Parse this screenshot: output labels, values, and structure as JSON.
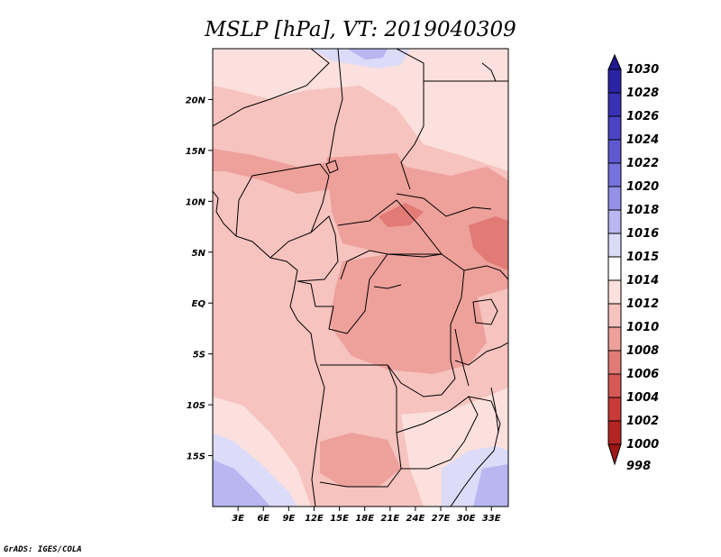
{
  "chart_data": {
    "type": "heatmap",
    "title": "MSLP [hPa], VT: 2019040309",
    "variable": "MSLP",
    "units": "hPa",
    "valid_time": "2019040309",
    "xlim": [
      0,
      35
    ],
    "ylim": [
      -20,
      25
    ],
    "x_ticks": [
      {
        "value": 3,
        "label": "3E"
      },
      {
        "value": 6,
        "label": "6E"
      },
      {
        "value": 9,
        "label": "9E"
      },
      {
        "value": 12,
        "label": "12E"
      },
      {
        "value": 15,
        "label": "15E"
      },
      {
        "value": 18,
        "label": "18E"
      },
      {
        "value": 21,
        "label": "21E"
      },
      {
        "value": 24,
        "label": "24E"
      },
      {
        "value": 27,
        "label": "27E"
      },
      {
        "value": 30,
        "label": "30E"
      },
      {
        "value": 33,
        "label": "33E"
      }
    ],
    "y_ticks": [
      {
        "value": 20,
        "label": "20N"
      },
      {
        "value": 15,
        "label": "15N"
      },
      {
        "value": 10,
        "label": "10N"
      },
      {
        "value": 5,
        "label": "5N"
      },
      {
        "value": 0,
        "label": "EQ"
      },
      {
        "value": -5,
        "label": "5S"
      },
      {
        "value": -10,
        "label": "10S"
      },
      {
        "value": -15,
        "label": "15S"
      }
    ],
    "colorbar": [
      {
        "label": "1030",
        "color": "#1f1891"
      },
      {
        "label": "1028",
        "color": "#2a23a4"
      },
      {
        "label": "1026",
        "color": "#3830b5"
      },
      {
        "label": "1024",
        "color": "#4a44c4"
      },
      {
        "label": "1022",
        "color": "#5e59d2"
      },
      {
        "label": "1020",
        "color": "#7672df"
      },
      {
        "label": "1018",
        "color": "#9591ea"
      },
      {
        "label": "1016",
        "color": "#b9b6f2"
      },
      {
        "label": "1015",
        "color": "#dcdbf8"
      },
      {
        "label": "1014",
        "color": "#ffffff"
      },
      {
        "label": "1012",
        "color": "#fbe0dd"
      },
      {
        "label": "1010",
        "color": "#f6c3bf"
      },
      {
        "label": "1008",
        "color": "#eea09b"
      },
      {
        "label": "1006",
        "color": "#e27b76"
      },
      {
        "label": "1004",
        "color": "#d65955"
      },
      {
        "label": "1002",
        "color": "#c83a37"
      },
      {
        "label": "1000",
        "color": "#b42522"
      },
      {
        "label": "998",
        "color": "#9c1715"
      }
    ],
    "fields": [
      {
        "level": "1015-1016",
        "color": "#dcdbf8",
        "region": "north-central Sahara edge"
      },
      {
        "level": "1012-1014",
        "color": "#fbe0dd",
        "region": "Sahara / northeast"
      },
      {
        "level": "1010-1012",
        "color": "#f6c3bf",
        "region": "West and Central Africa"
      },
      {
        "level": "1008-1010",
        "color": "#eea09b",
        "region": "Congo basin, Sudan, South Sudan"
      },
      {
        "level": "1006-1008",
        "color": "#e27b76",
        "region": "South Sudan / Uganda"
      },
      {
        "level": "1015-1018",
        "color": "#b9b6f2",
        "region": "southwest Atlantic / southeast"
      }
    ]
  },
  "footer": {
    "text": "GrADS: IGES/COLA"
  }
}
